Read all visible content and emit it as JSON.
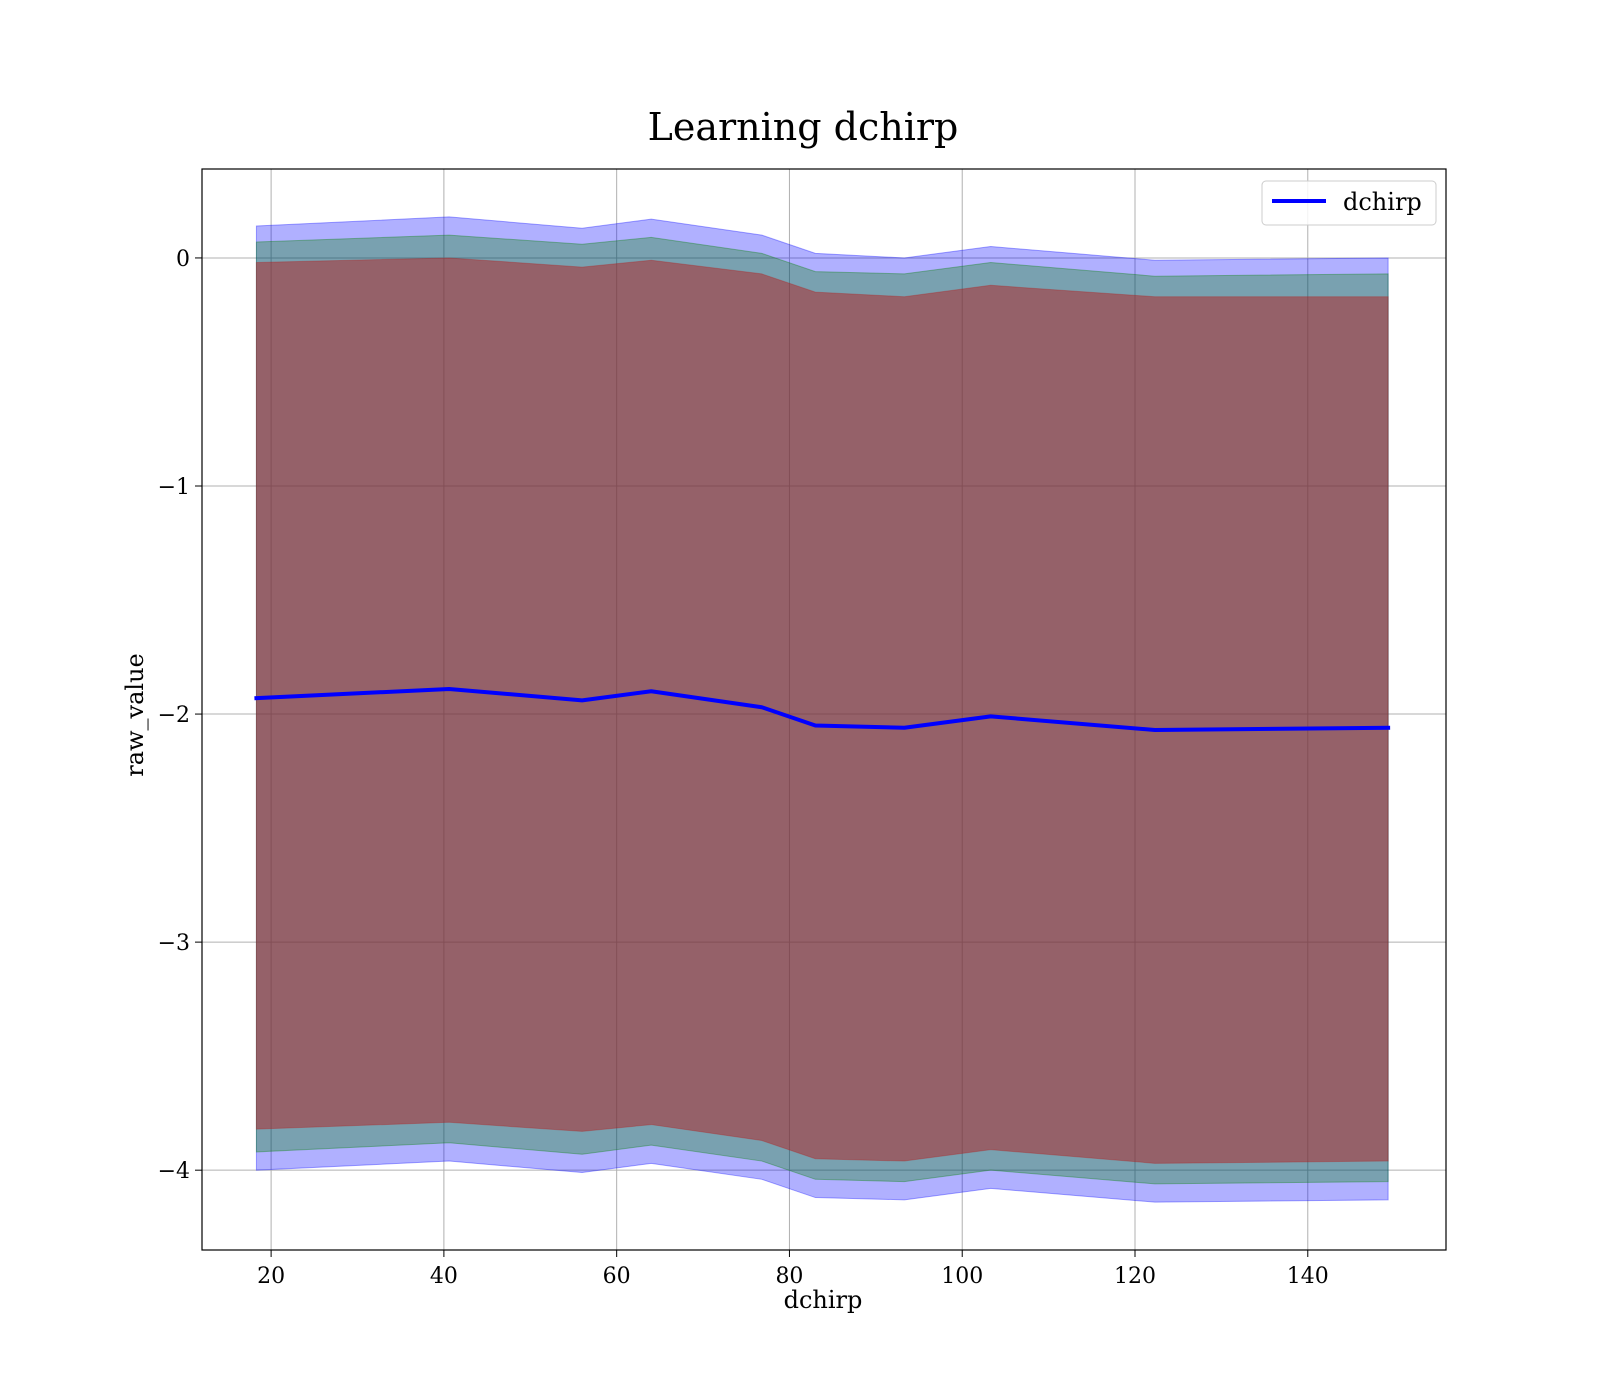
{
  "chart_data": {
    "type": "area",
    "title": "Learning dchirp",
    "xlabel": "dchirp",
    "ylabel": "raw_value",
    "xlim": [
      12,
      156
    ],
    "ylim": [
      -4.35,
      0.39
    ],
    "xticks": [
      20,
      40,
      60,
      80,
      100,
      120,
      140
    ],
    "yticks": [
      0,
      -1,
      -2,
      -3,
      -4
    ],
    "xtick_labels": [
      "20",
      "40",
      "60",
      "80",
      "100",
      "120",
      "140"
    ],
    "ytick_labels": [
      "0",
      "−1",
      "−2",
      "−3",
      "−4"
    ],
    "grid": true,
    "legend": {
      "location": "upper right",
      "entries": [
        "dchirp"
      ]
    },
    "x": [
      18.3,
      40.6,
      56.0,
      64.0,
      76.8,
      83.0,
      93.3,
      103.3,
      122.3,
      149.3
    ],
    "series": [
      {
        "name": "dchirp",
        "type": "line",
        "color": "#0000ff",
        "values": [
          -1.93,
          -1.89,
          -1.94,
          -1.9,
          -1.97,
          -2.05,
          -2.06,
          -2.01,
          -2.07,
          -2.06
        ]
      }
    ],
    "bands": [
      {
        "color": "#0000ff",
        "opacity": 0.31,
        "upper": [
          0.14,
          0.18,
          0.13,
          0.17,
          0.1,
          0.02,
          0.0,
          0.05,
          -0.01,
          0.0
        ],
        "lower": [
          -4.0,
          -3.96,
          -4.01,
          -3.97,
          -4.04,
          -4.12,
          -4.13,
          -4.08,
          -4.14,
          -4.13
        ]
      },
      {
        "color": "#008000",
        "opacity": 0.31,
        "upper": [
          0.07,
          0.1,
          0.06,
          0.09,
          0.02,
          -0.06,
          -0.07,
          -0.02,
          -0.08,
          -0.07
        ],
        "lower": [
          -3.92,
          -3.88,
          -3.93,
          -3.89,
          -3.96,
          -4.04,
          -4.05,
          -4.0,
          -4.06,
          -4.05
        ]
      },
      {
        "color": "#b22222",
        "opacity": 0.5,
        "upper": [
          -0.02,
          0.0,
          -0.04,
          -0.01,
          -0.07,
          -0.15,
          -0.17,
          -0.12,
          -0.17,
          -0.17
        ],
        "lower": [
          -3.82,
          -3.79,
          -3.83,
          -3.8,
          -3.87,
          -3.95,
          -3.96,
          -3.91,
          -3.97,
          -3.96
        ]
      }
    ]
  }
}
